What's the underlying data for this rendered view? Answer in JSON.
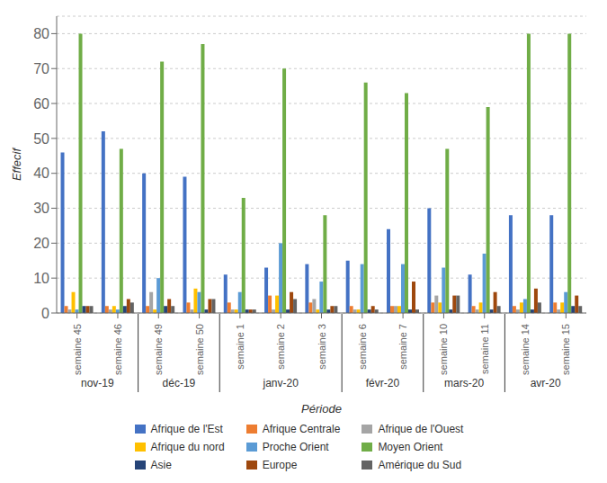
{
  "chart_data": {
    "type": "bar",
    "categories": [
      "semaine 45",
      "semaine 46",
      "semaine 49",
      "semaine 50",
      "semaine 1",
      "semaine 2",
      "semaine 3",
      "semaine 6",
      "semaine 7",
      "semaine 10",
      "semaine 11",
      "semaine 14",
      "semaine 15"
    ],
    "category_groups": [
      {
        "label": "nov-19",
        "categories": [
          "semaine 45",
          "semaine 46"
        ]
      },
      {
        "label": "déc-19",
        "categories": [
          "semaine 49",
          "semaine 50"
        ]
      },
      {
        "label": "janv-20",
        "categories": [
          "semaine 1",
          "semaine 2",
          "semaine 3"
        ]
      },
      {
        "label": "févr-20",
        "categories": [
          "semaine 6",
          "semaine 7"
        ]
      },
      {
        "label": "mars-20",
        "categories": [
          "semaine 10",
          "semaine 11"
        ]
      },
      {
        "label": "avr-20",
        "categories": [
          "semaine 14",
          "semaine 15"
        ]
      }
    ],
    "series": [
      {
        "name": "Afrique de l'Est",
        "color": "#4472C4",
        "values": [
          46,
          52,
          40,
          39,
          11,
          13,
          14,
          15,
          24,
          30,
          11,
          28,
          28
        ]
      },
      {
        "name": "Afrique Centrale",
        "color": "#ED7D31",
        "values": [
          2,
          2,
          2,
          3,
          3,
          5,
          3,
          2,
          2,
          3,
          2,
          2,
          3
        ]
      },
      {
        "name": "Afrique de l'Ouest",
        "color": "#A5A5A5",
        "values": [
          1,
          1,
          6,
          1,
          1,
          1,
          4,
          1,
          2,
          5,
          1,
          1,
          1
        ]
      },
      {
        "name": "Afrique du nord",
        "color": "#FFC000",
        "values": [
          6,
          2,
          1,
          7,
          1,
          5,
          1,
          1,
          2,
          3,
          3,
          3,
          3
        ]
      },
      {
        "name": "Proche Orient",
        "color": "#5B9BD5",
        "values": [
          1,
          1,
          10,
          6,
          6,
          20,
          9,
          14,
          14,
          13,
          17,
          4,
          6
        ]
      },
      {
        "name": "Moyen Orient",
        "color": "#70AD47",
        "values": [
          80,
          47,
          72,
          77,
          33,
          70,
          28,
          66,
          63,
          47,
          59,
          80,
          80
        ]
      },
      {
        "name": "Asie",
        "color": "#264478",
        "values": [
          2,
          2,
          2,
          1,
          1,
          1,
          1,
          1,
          1,
          1,
          1,
          1,
          2
        ]
      },
      {
        "name": "Europe",
        "color": "#9E480E",
        "values": [
          2,
          4,
          4,
          4,
          1,
          6,
          2,
          2,
          9,
          5,
          6,
          7,
          5
        ]
      },
      {
        "name": "Amérique du Sud",
        "color": "#636363",
        "values": [
          2,
          3,
          2,
          4,
          1,
          4,
          2,
          1,
          1,
          5,
          2,
          3,
          2
        ]
      }
    ],
    "xlabel": "Période",
    "ylabel": "Effecif",
    "ylim": [
      0,
      85
    ],
    "yticks": [
      0,
      10,
      20,
      30,
      40,
      50,
      60,
      70,
      80
    ],
    "grid": true
  }
}
